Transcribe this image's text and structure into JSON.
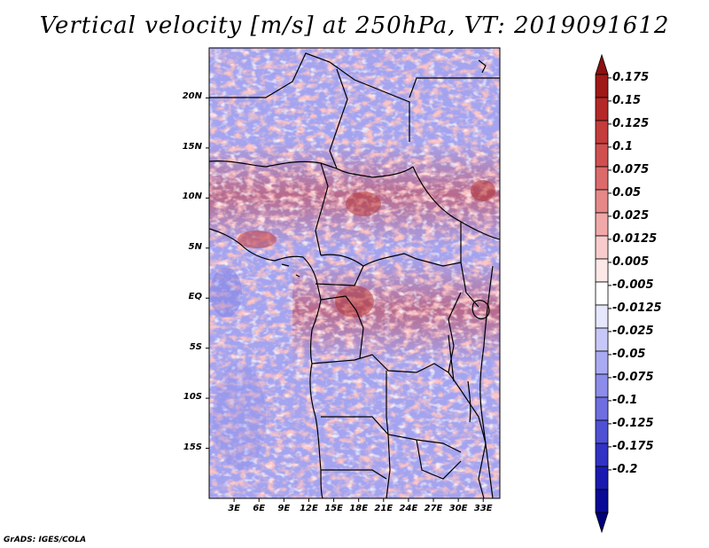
{
  "title": "Vertical velocity [m/s] at 250hPa, VT: 2019091612",
  "footer": "GrADS: IGES/COLA",
  "map": {
    "lon_range": [
      0,
      35
    ],
    "lat_range": [
      -20,
      25
    ],
    "lat_ticks": [
      {
        "value": 20,
        "label": "20N"
      },
      {
        "value": 15,
        "label": "15N"
      },
      {
        "value": 10,
        "label": "10N"
      },
      {
        "value": 5,
        "label": "5N"
      },
      {
        "value": 0,
        "label": "EQ"
      },
      {
        "value": -5,
        "label": "5S"
      },
      {
        "value": -10,
        "label": "10S"
      },
      {
        "value": -15,
        "label": "15S"
      }
    ],
    "lon_ticks": [
      {
        "value": 3,
        "label": "3E"
      },
      {
        "value": 6,
        "label": "6E"
      },
      {
        "value": 9,
        "label": "9E"
      },
      {
        "value": 12,
        "label": "12E"
      },
      {
        "value": 15,
        "label": "15E"
      },
      {
        "value": 18,
        "label": "18E"
      },
      {
        "value": 21,
        "label": "21E"
      },
      {
        "value": 24,
        "label": "24E"
      },
      {
        "value": 27,
        "label": "27E"
      },
      {
        "value": 30,
        "label": "30E"
      },
      {
        "value": 33,
        "label": "33E"
      }
    ]
  },
  "colorbar": {
    "labels": [
      "0.175",
      "0.15",
      "0.125",
      "0.1",
      "0.075",
      "0.05",
      "0.025",
      "0.0125",
      "0.005",
      "-0.005",
      "-0.0125",
      "-0.025",
      "-0.05",
      "-0.075",
      "-0.1",
      "-0.125",
      "-0.175",
      "-0.2"
    ],
    "colors": [
      "#a01818",
      "#b42828",
      "#c43c3c",
      "#d05050",
      "#dc6a6a",
      "#e68888",
      "#f0a8a8",
      "#f8cccc",
      "#fde8e8",
      "#ffffff",
      "#e6e6fc",
      "#c8c8f8",
      "#aaaaf2",
      "#8c8cea",
      "#6e6ee0",
      "#5050d4",
      "#3232c4",
      "#1a1ab0",
      "#0a0a96"
    ],
    "top_color": "#8c1010",
    "bottom_color": "#00007a"
  },
  "colors": {
    "ocean_base": "#a4a4f0",
    "border": "#000000"
  }
}
